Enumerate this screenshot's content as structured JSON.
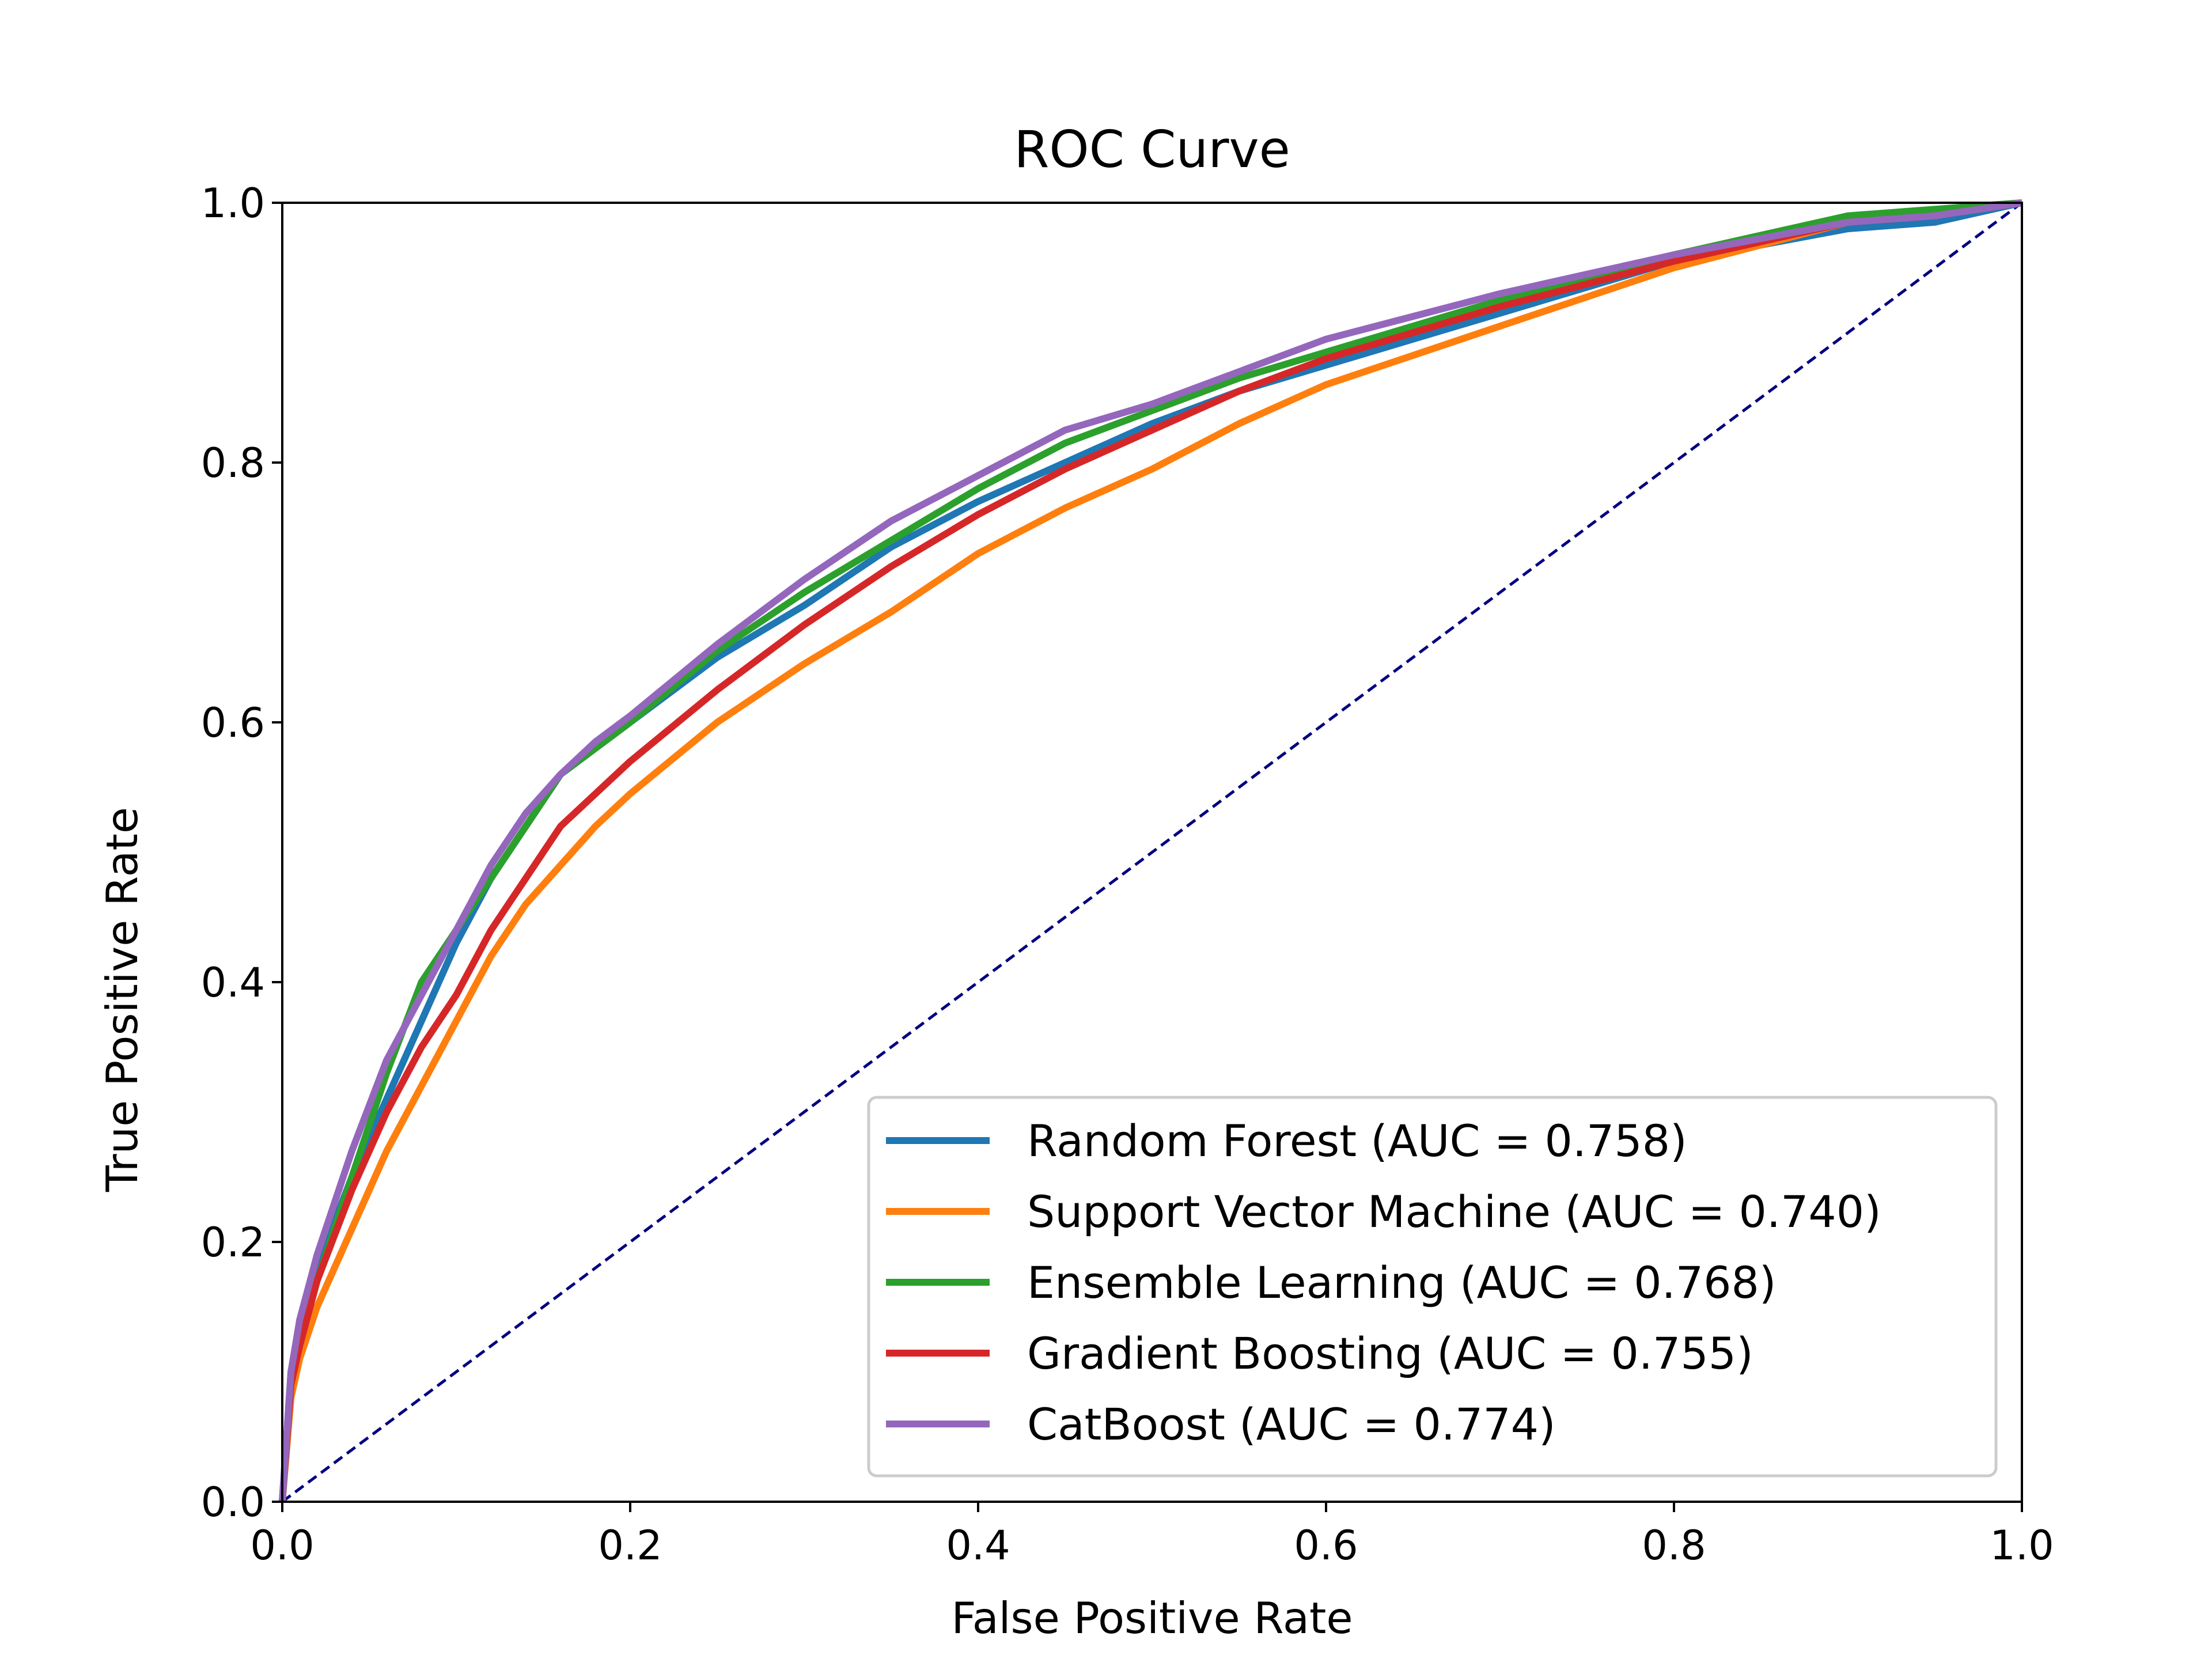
{
  "chart_data": {
    "type": "line",
    "title": "ROC Curve",
    "xlabel": "False Positive Rate",
    "ylabel": "True Positive Rate",
    "xlim": [
      0.0,
      1.0
    ],
    "ylim": [
      0.0,
      1.0
    ],
    "xticks": [
      "0.0",
      "0.2",
      "0.4",
      "0.6",
      "0.8",
      "1.0"
    ],
    "yticks": [
      "0.0",
      "0.2",
      "0.4",
      "0.6",
      "0.8",
      "1.0"
    ],
    "grid": false,
    "legend_position": "lower-right",
    "series": [
      {
        "name": "Random Forest (AUC = 0.758)",
        "color": "#1f77b4",
        "x": [
          0.0,
          0.005,
          0.01,
          0.02,
          0.04,
          0.06,
          0.08,
          0.1,
          0.12,
          0.14,
          0.16,
          0.18,
          0.2,
          0.25,
          0.3,
          0.35,
          0.4,
          0.45,
          0.5,
          0.55,
          0.6,
          0.7,
          0.8,
          0.9,
          0.95,
          1.0
        ],
        "y": [
          0.0,
          0.1,
          0.13,
          0.18,
          0.25,
          0.31,
          0.37,
          0.43,
          0.48,
          0.52,
          0.56,
          0.58,
          0.6,
          0.65,
          0.69,
          0.735,
          0.77,
          0.8,
          0.83,
          0.855,
          0.875,
          0.915,
          0.955,
          0.98,
          0.985,
          1.0
        ]
      },
      {
        "name": "Support Vector Machine (AUC = 0.740)",
        "color": "#ff7f0e",
        "x": [
          0.0,
          0.005,
          0.01,
          0.02,
          0.04,
          0.06,
          0.08,
          0.1,
          0.12,
          0.14,
          0.16,
          0.18,
          0.2,
          0.25,
          0.3,
          0.35,
          0.4,
          0.45,
          0.5,
          0.55,
          0.6,
          0.7,
          0.8,
          0.9,
          0.95,
          1.0
        ],
        "y": [
          0.0,
          0.08,
          0.11,
          0.15,
          0.21,
          0.27,
          0.32,
          0.37,
          0.42,
          0.46,
          0.49,
          0.52,
          0.545,
          0.6,
          0.645,
          0.685,
          0.73,
          0.765,
          0.795,
          0.83,
          0.86,
          0.905,
          0.95,
          0.985,
          0.99,
          1.0
        ]
      },
      {
        "name": "Ensemble Learning (AUC = 0.768)",
        "color": "#2ca02c",
        "x": [
          0.0,
          0.005,
          0.01,
          0.02,
          0.04,
          0.06,
          0.08,
          0.1,
          0.12,
          0.14,
          0.16,
          0.18,
          0.2,
          0.25,
          0.3,
          0.35,
          0.4,
          0.45,
          0.5,
          0.55,
          0.6,
          0.7,
          0.8,
          0.9,
          0.95,
          1.0
        ],
        "y": [
          0.0,
          0.09,
          0.12,
          0.17,
          0.25,
          0.33,
          0.4,
          0.44,
          0.48,
          0.52,
          0.56,
          0.58,
          0.6,
          0.655,
          0.7,
          0.74,
          0.78,
          0.815,
          0.84,
          0.865,
          0.885,
          0.925,
          0.96,
          0.99,
          0.995,
          1.0
        ]
      },
      {
        "name": "Gradient Boosting (AUC = 0.755)",
        "color": "#d62728",
        "x": [
          0.0,
          0.005,
          0.01,
          0.02,
          0.04,
          0.06,
          0.08,
          0.1,
          0.12,
          0.14,
          0.16,
          0.18,
          0.2,
          0.25,
          0.3,
          0.35,
          0.4,
          0.45,
          0.5,
          0.55,
          0.6,
          0.7,
          0.8,
          0.9,
          0.95,
          1.0
        ],
        "y": [
          0.0,
          0.09,
          0.12,
          0.17,
          0.24,
          0.3,
          0.35,
          0.39,
          0.44,
          0.48,
          0.52,
          0.545,
          0.57,
          0.625,
          0.675,
          0.72,
          0.76,
          0.795,
          0.825,
          0.855,
          0.88,
          0.92,
          0.955,
          0.985,
          0.99,
          1.0
        ]
      },
      {
        "name": "CatBoost (AUC = 0.774)",
        "color": "#9467bd",
        "x": [
          0.0,
          0.005,
          0.01,
          0.02,
          0.04,
          0.06,
          0.08,
          0.1,
          0.12,
          0.14,
          0.16,
          0.18,
          0.2,
          0.25,
          0.3,
          0.35,
          0.4,
          0.45,
          0.5,
          0.55,
          0.6,
          0.7,
          0.8,
          0.9,
          0.95,
          1.0
        ],
        "y": [
          0.0,
          0.1,
          0.14,
          0.19,
          0.27,
          0.34,
          0.39,
          0.44,
          0.49,
          0.53,
          0.56,
          0.585,
          0.605,
          0.66,
          0.71,
          0.755,
          0.79,
          0.825,
          0.845,
          0.87,
          0.895,
          0.93,
          0.96,
          0.985,
          0.99,
          1.0
        ]
      }
    ],
    "reference_line": {
      "x": [
        0.0,
        1.0
      ],
      "y": [
        0.0,
        1.0
      ],
      "color": "#000080",
      "style": "dashed"
    }
  }
}
